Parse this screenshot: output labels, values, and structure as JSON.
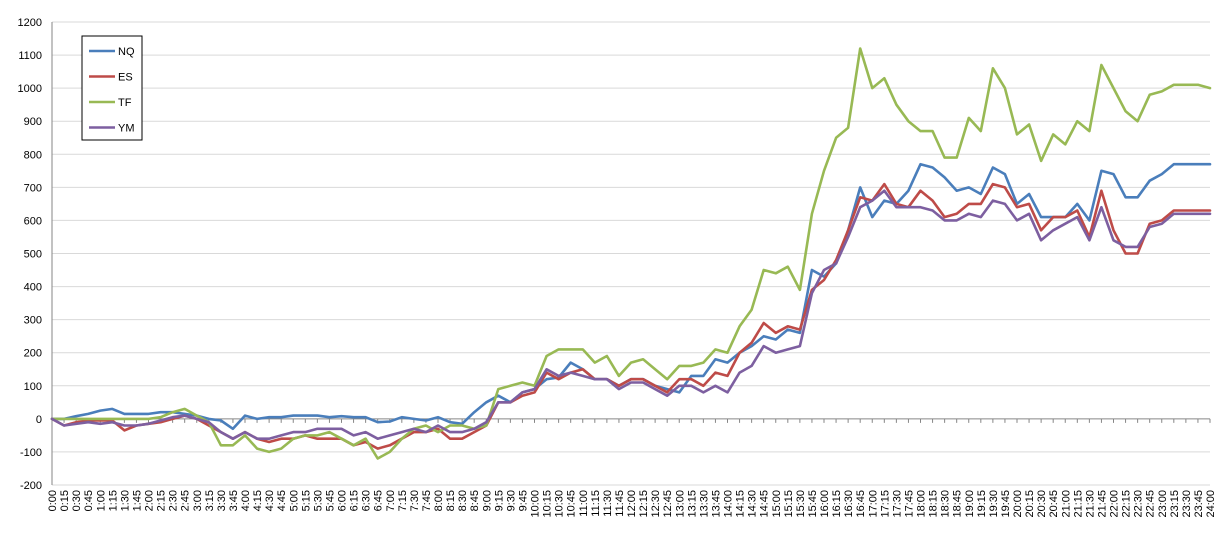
{
  "chart_data": {
    "type": "line",
    "title": "",
    "xlabel": "",
    "ylabel": "",
    "ylim": [
      -200,
      1200
    ],
    "y_ticks": [
      -200,
      -100,
      0,
      100,
      200,
      300,
      400,
      500,
      600,
      700,
      800,
      900,
      1000,
      1100,
      1200
    ],
    "grid": "horizontal",
    "legend": "top-left",
    "x": [
      "0:00",
      "0:15",
      "0:30",
      "0:45",
      "1:00",
      "1:15",
      "1:30",
      "1:45",
      "2:00",
      "2:15",
      "2:30",
      "2:45",
      "3:00",
      "3:15",
      "3:30",
      "3:45",
      "4:00",
      "4:15",
      "4:30",
      "4:45",
      "5:00",
      "5:15",
      "5:30",
      "5:45",
      "6:00",
      "6:15",
      "6:30",
      "6:45",
      "7:00",
      "7:15",
      "7:30",
      "7:45",
      "8:00",
      "8:15",
      "8:30",
      "8:45",
      "9:00",
      "9:15",
      "9:30",
      "9:45",
      "10:00",
      "10:15",
      "10:30",
      "10:45",
      "11:00",
      "11:15",
      "11:30",
      "11:45",
      "12:00",
      "12:15",
      "12:30",
      "12:45",
      "13:00",
      "13:15",
      "13:30",
      "13:45",
      "14:00",
      "14:15",
      "14:30",
      "14:45",
      "15:00",
      "15:15",
      "15:30",
      "15:45",
      "16:00",
      "16:15",
      "16:30",
      "16:45",
      "17:00",
      "17:15",
      "17:30",
      "17:45",
      "18:00",
      "18:15",
      "18:30",
      "18:45",
      "19:00",
      "19:15",
      "19:30",
      "19:45",
      "20:00",
      "20:15",
      "20:30",
      "20:45",
      "21:00",
      "21:15",
      "21:30",
      "21:45",
      "22:00",
      "22:15",
      "22:30",
      "22:45",
      "23:00",
      "23:15",
      "23:30",
      "23:45",
      "24:00"
    ],
    "series": [
      {
        "name": "NQ",
        "color": "#4a7ebb",
        "values": [
          0,
          0,
          8,
          15,
          25,
          30,
          15,
          15,
          15,
          20,
          20,
          15,
          10,
          0,
          -5,
          -30,
          10,
          0,
          5,
          5,
          10,
          10,
          10,
          5,
          8,
          5,
          5,
          -10,
          -8,
          5,
          0,
          -5,
          5,
          -10,
          -15,
          20,
          50,
          70,
          50,
          80,
          90,
          120,
          125,
          170,
          150,
          120,
          120,
          100,
          120,
          120,
          100,
          90,
          80,
          130,
          130,
          180,
          170,
          200,
          220,
          250,
          240,
          270,
          260,
          450,
          430,
          470,
          570,
          700,
          610,
          660,
          650,
          690,
          770,
          760,
          730,
          690,
          700,
          680,
          760,
          740,
          650,
          680,
          610,
          610,
          610,
          650,
          600,
          750,
          740,
          670,
          670,
          720,
          740,
          770,
          770,
          770,
          770
        ]
      },
      {
        "name": "ES",
        "color": "#be4b48",
        "values": [
          0,
          -20,
          -10,
          -5,
          -5,
          -5,
          -35,
          -20,
          -15,
          -10,
          0,
          10,
          0,
          -20,
          -40,
          -60,
          -40,
          -60,
          -70,
          -60,
          -60,
          -50,
          -60,
          -60,
          -60,
          -80,
          -70,
          -90,
          -80,
          -60,
          -40,
          -40,
          -30,
          -60,
          -60,
          -40,
          -20,
          50,
          50,
          70,
          80,
          140,
          120,
          140,
          150,
          120,
          120,
          100,
          120,
          120,
          100,
          80,
          120,
          120,
          100,
          140,
          130,
          200,
          230,
          290,
          260,
          280,
          270,
          390,
          420,
          480,
          570,
          670,
          660,
          710,
          650,
          640,
          690,
          660,
          610,
          620,
          650,
          650,
          710,
          700,
          640,
          650,
          570,
          610,
          610,
          630,
          550,
          690,
          570,
          500,
          500,
          590,
          600,
          630,
          630,
          630,
          630
        ]
      },
      {
        "name": "TF",
        "color": "#98b954",
        "values": [
          0,
          0,
          0,
          0,
          0,
          0,
          0,
          0,
          0,
          5,
          20,
          30,
          10,
          -10,
          -80,
          -80,
          -50,
          -90,
          -100,
          -90,
          -60,
          -50,
          -50,
          -40,
          -60,
          -80,
          -60,
          -120,
          -100,
          -60,
          -30,
          -20,
          -40,
          -20,
          -20,
          -30,
          -20,
          90,
          100,
          110,
          100,
          190,
          210,
          210,
          210,
          170,
          190,
          130,
          170,
          180,
          150,
          120,
          160,
          160,
          170,
          210,
          200,
          280,
          330,
          450,
          440,
          460,
          390,
          620,
          750,
          850,
          880,
          1120,
          1000,
          1030,
          950,
          900,
          870,
          870,
          790,
          790,
          910,
          870,
          1060,
          1000,
          860,
          890,
          780,
          860,
          830,
          900,
          870,
          1070,
          1000,
          930,
          900,
          980,
          990,
          1010,
          1010,
          1010,
          1000
        ]
      },
      {
        "name": "YM",
        "color": "#7d5fa0",
        "values": [
          0,
          -20,
          -15,
          -10,
          -15,
          -10,
          -20,
          -20,
          -15,
          -5,
          5,
          10,
          0,
          -10,
          -40,
          -60,
          -40,
          -60,
          -60,
          -50,
          -40,
          -40,
          -30,
          -30,
          -30,
          -50,
          -40,
          -60,
          -50,
          -40,
          -30,
          -40,
          -20,
          -40,
          -40,
          -30,
          -10,
          50,
          50,
          80,
          90,
          150,
          130,
          140,
          130,
          120,
          120,
          90,
          110,
          110,
          90,
          70,
          100,
          100,
          80,
          100,
          80,
          140,
          160,
          220,
          200,
          210,
          220,
          380,
          450,
          470,
          550,
          640,
          660,
          690,
          640,
          640,
          640,
          630,
          600,
          600,
          620,
          610,
          660,
          650,
          600,
          620,
          540,
          570,
          590,
          610,
          540,
          640,
          540,
          520,
          520,
          580,
          590,
          620,
          620,
          620,
          620
        ]
      }
    ]
  }
}
